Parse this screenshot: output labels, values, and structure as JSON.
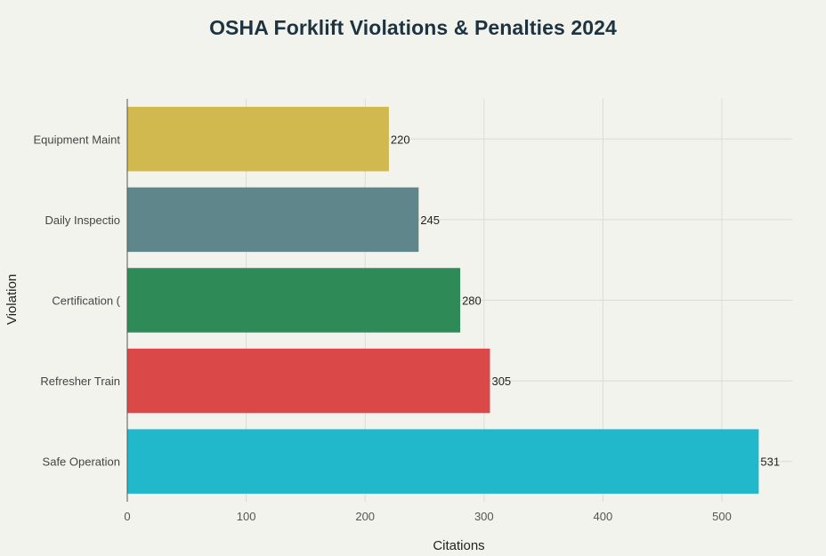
{
  "chart_data": {
    "type": "bar",
    "orientation": "horizontal",
    "title": "OSHA Forklift Violations & Penalties 2024",
    "xlabel": "Citations",
    "ylabel": "Violation",
    "categories": [
      "Equipment Maint",
      "Daily Inspectio",
      "Certification (",
      "Refresher Train",
      "Safe Operation"
    ],
    "values": [
      220,
      245,
      280,
      305,
      531
    ],
    "colors": [
      "#d2b94f",
      "#5e868b",
      "#2e8a56",
      "#db4848",
      "#21b8cc"
    ],
    "xlim": [
      0,
      560
    ],
    "xticks": [
      0,
      100,
      200,
      300,
      400,
      500
    ],
    "grid": true,
    "legend": "none"
  }
}
